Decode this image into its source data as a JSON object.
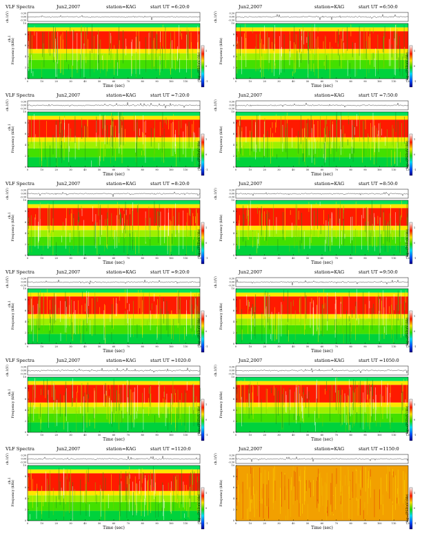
{
  "page": {
    "labels": {
      "ch_axis": "ch.1(V)",
      "freq_axis": "Frequency (kHz)",
      "ch1_tag": "ch.1",
      "time_axis": "Time (sec)",
      "colorbar_label": "log₁₀(PSD)(V²/Hz)"
    }
  },
  "chart_data": [
    {
      "type": "heatmap",
      "title": "VLF Spectra",
      "date": "Jun2,2007",
      "station": "station=KAG",
      "start_label": "start UT =6:20:0",
      "show_ch1_tag": true,
      "xlim": [
        0,
        120
      ],
      "xticks": [
        "0",
        "10",
        "20",
        "30",
        "40",
        "50",
        "60",
        "70",
        "80",
        "90",
        "100",
        "110",
        "120"
      ],
      "ylim": [
        0,
        10
      ],
      "yticks": [
        "0",
        "2",
        "4",
        "6",
        "8",
        "10"
      ],
      "waveform_ylim": [
        -0.3,
        0.3
      ],
      "waveform_yticks": [
        "0.30",
        "0.00",
        "-0.30"
      ],
      "cb_ticks": [
        "1",
        "0",
        "-1"
      ]
    },
    {
      "type": "heatmap",
      "title": "",
      "date": "Jun2,2007",
      "station": "station=KAG",
      "start_label": "start UT =6:50:0",
      "show_ch1_tag": false,
      "xlim": [
        0,
        120
      ],
      "xticks": [
        "0",
        "10",
        "20",
        "30",
        "40",
        "50",
        "60",
        "70",
        "80",
        "90",
        "100",
        "110",
        "120"
      ],
      "ylim": [
        0,
        10
      ],
      "yticks": [
        "0",
        "2",
        "4",
        "6",
        "8",
        "10"
      ],
      "waveform_ylim": [
        -0.3,
        0.3
      ],
      "waveform_yticks": [
        "0.30",
        "0.00",
        "-0.30"
      ],
      "cb_ticks": [
        "1",
        "0",
        "-1"
      ]
    },
    {
      "type": "heatmap",
      "title": "VLF Spectra",
      "date": "Jun2,2007",
      "station": "station=KAG",
      "start_label": "start UT =7:20:0",
      "show_ch1_tag": true,
      "xlim": [
        0,
        120
      ],
      "xticks": [
        "0",
        "10",
        "20",
        "30",
        "40",
        "50",
        "60",
        "70",
        "80",
        "90",
        "100",
        "110",
        "120"
      ],
      "ylim": [
        0,
        10
      ],
      "yticks": [
        "0",
        "2",
        "4",
        "6",
        "8",
        "10"
      ],
      "waveform_ylim": [
        -0.3,
        0.3
      ],
      "waveform_yticks": [
        "0.30",
        "0.00",
        "-0.30"
      ],
      "cb_ticks": [
        "1",
        "0",
        "-1"
      ]
    },
    {
      "type": "heatmap",
      "title": "",
      "date": "Jun2,2007",
      "station": "station=KAG",
      "start_label": "start UT =7:50:0",
      "show_ch1_tag": false,
      "xlim": [
        0,
        120
      ],
      "xticks": [
        "0",
        "10",
        "20",
        "30",
        "40",
        "50",
        "60",
        "70",
        "80",
        "90",
        "100",
        "110",
        "120"
      ],
      "ylim": [
        0,
        10
      ],
      "yticks": [
        "0",
        "2",
        "4",
        "6",
        "8",
        "10"
      ],
      "waveform_ylim": [
        -0.3,
        0.3
      ],
      "waveform_yticks": [
        "0.30",
        "0.00",
        "-0.30"
      ],
      "cb_ticks": [
        "1",
        "0",
        "-1"
      ]
    },
    {
      "type": "heatmap",
      "title": "VLF Spectra",
      "date": "Jun2,2007",
      "station": "station=KAG",
      "start_label": "start UT =8:20:0",
      "show_ch1_tag": true,
      "xlim": [
        0,
        120
      ],
      "xticks": [
        "0",
        "10",
        "20",
        "30",
        "40",
        "50",
        "60",
        "70",
        "80",
        "90",
        "100",
        "110",
        "120"
      ],
      "ylim": [
        0,
        10
      ],
      "yticks": [
        "0",
        "2",
        "4",
        "6",
        "8",
        "10"
      ],
      "waveform_ylim": [
        -0.3,
        0.3
      ],
      "waveform_yticks": [
        "0.30",
        "0.00",
        "-0.30"
      ],
      "cb_ticks": [
        "1",
        "0",
        "-1"
      ]
    },
    {
      "type": "heatmap",
      "title": "",
      "date": "Jun2,2007",
      "station": "station=KAG",
      "start_label": "start UT =8:50:0",
      "show_ch1_tag": false,
      "xlim": [
        0,
        120
      ],
      "xticks": [
        "0",
        "10",
        "20",
        "30",
        "40",
        "50",
        "60",
        "70",
        "80",
        "90",
        "100",
        "110",
        "120"
      ],
      "ylim": [
        0,
        10
      ],
      "yticks": [
        "0",
        "2",
        "4",
        "6",
        "8",
        "10"
      ],
      "waveform_ylim": [
        -0.3,
        0.3
      ],
      "waveform_yticks": [
        "0.30",
        "0.00",
        "-0.30"
      ],
      "cb_ticks": [
        "1",
        "0",
        "-1"
      ]
    },
    {
      "type": "heatmap",
      "title": "VLF Spectra",
      "date": "Jun2,2007",
      "station": "station=KAG",
      "start_label": "start UT =9:20:0",
      "show_ch1_tag": true,
      "xlim": [
        0,
        120
      ],
      "xticks": [
        "0",
        "10",
        "20",
        "30",
        "40",
        "50",
        "60",
        "70",
        "80",
        "90",
        "100",
        "110",
        "120"
      ],
      "ylim": [
        0,
        10
      ],
      "yticks": [
        "0",
        "2",
        "4",
        "6",
        "8",
        "10"
      ],
      "waveform_ylim": [
        -0.3,
        0.3
      ],
      "waveform_yticks": [
        "0.30",
        "0.00",
        "-0.30"
      ],
      "cb_ticks": [
        "1",
        "0",
        "-1"
      ]
    },
    {
      "type": "heatmap",
      "title": "",
      "date": "Jun2,2007",
      "station": "station=KAG",
      "start_label": "start UT =9:50:0",
      "show_ch1_tag": false,
      "xlim": [
        0,
        120
      ],
      "xticks": [
        "0",
        "10",
        "20",
        "30",
        "40",
        "50",
        "60",
        "70",
        "80",
        "90",
        "100",
        "110",
        "120"
      ],
      "ylim": [
        0,
        10
      ],
      "yticks": [
        "0",
        "2",
        "4",
        "6",
        "8",
        "10"
      ],
      "waveform_ylim": [
        -0.3,
        0.3
      ],
      "waveform_yticks": [
        "0.30",
        "0.00",
        "-0.30"
      ],
      "cb_ticks": [
        "1",
        "0",
        "-1"
      ]
    },
    {
      "type": "heatmap",
      "title": "VLF Spectra",
      "date": "Jun2,2007",
      "station": "station=KAG",
      "start_label": "start UT =1020:0",
      "show_ch1_tag": true,
      "xlim": [
        0,
        120
      ],
      "xticks": [
        "0",
        "10",
        "20",
        "30",
        "40",
        "50",
        "60",
        "70",
        "80",
        "90",
        "100",
        "110",
        "120"
      ],
      "ylim": [
        0,
        10
      ],
      "yticks": [
        "0",
        "2",
        "4",
        "6",
        "8",
        "10"
      ],
      "waveform_ylim": [
        -0.3,
        0.3
      ],
      "waveform_yticks": [
        "0.30",
        "0.00",
        "-0.30"
      ],
      "cb_ticks": [
        "1",
        "0",
        "-1"
      ]
    },
    {
      "type": "heatmap",
      "title": "",
      "date": "Jun2,2007",
      "station": "station=KAG",
      "start_label": "start UT =1050:0",
      "show_ch1_tag": false,
      "xlim": [
        0,
        120
      ],
      "xticks": [
        "0",
        "10",
        "20",
        "30",
        "40",
        "50",
        "60",
        "70",
        "80",
        "90",
        "100",
        "110",
        "120"
      ],
      "ylim": [
        0,
        10
      ],
      "yticks": [
        "0",
        "2",
        "4",
        "6",
        "8",
        "10"
      ],
      "waveform_ylim": [
        -0.3,
        0.3
      ],
      "waveform_yticks": [
        "0.30",
        "0.00",
        "-0.30"
      ],
      "cb_ticks": [
        "1",
        "0",
        "-1"
      ]
    },
    {
      "type": "heatmap",
      "title": "VLF Spectra",
      "date": "Jun2,2007",
      "station": "station=KAG",
      "start_label": "start UT =1120:0",
      "show_ch1_tag": true,
      "xlim": [
        0,
        120
      ],
      "xticks": [
        "0",
        "10",
        "20",
        "30",
        "40",
        "50",
        "60",
        "70",
        "80",
        "90",
        "100",
        "110",
        "120"
      ],
      "ylim": [
        0,
        10
      ],
      "yticks": [
        "0",
        "2",
        "4",
        "6",
        "8",
        "10"
      ],
      "waveform_ylim": [
        -0.3,
        0.3
      ],
      "waveform_yticks": [
        "0.30",
        "0.00",
        "-0.30"
      ],
      "cb_ticks": [
        "1",
        "0",
        "-1"
      ]
    },
    {
      "type": "heatmap",
      "title": "",
      "date": "Jun2,2007",
      "station": "station=KAG",
      "start_label": "start UT =1150:0",
      "show_ch1_tag": false,
      "xlim": [
        0,
        120
      ],
      "xticks": [
        "0",
        "10",
        "20",
        "30",
        "40",
        "50",
        "60",
        "70",
        "80",
        "90",
        "100",
        "110",
        "120"
      ],
      "ylim": [
        0,
        10
      ],
      "yticks": [
        "0",
        "2",
        "4",
        "6",
        "8",
        "10"
      ],
      "waveform_ylim": [
        -0.3,
        0.3
      ],
      "waveform_yticks": [
        "0.30",
        "0.00",
        "-0.30"
      ],
      "cb_ticks": [
        "1",
        "0",
        "-1"
      ]
    }
  ]
}
